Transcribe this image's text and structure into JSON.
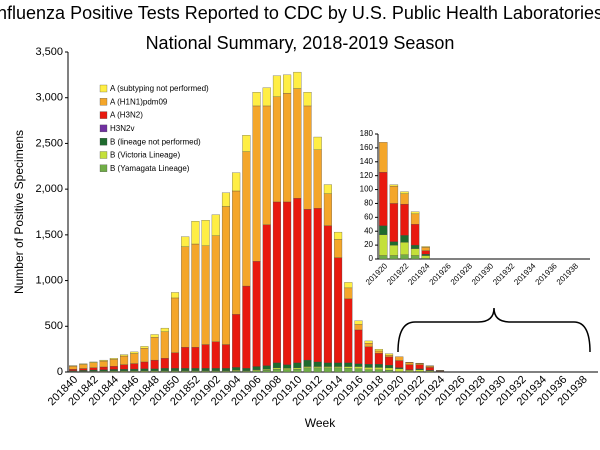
{
  "chart_data": [
    {
      "type": "bar",
      "stacked": true,
      "title": "Influenza Positive Tests Reported to CDC by U.S. Public Health Laboratories,",
      "subtitle": "National Summary, 2018-2019 Season",
      "x_label": "Week",
      "y_label": "Number of Positive Specimens",
      "categories": [
        "201840",
        null,
        "201842",
        null,
        "201844",
        null,
        "201846",
        null,
        "201848",
        null,
        "201850",
        null,
        "201852",
        null,
        "201902",
        null,
        "201904",
        null,
        "201906",
        null,
        "201908",
        null,
        "201910",
        null,
        "201912",
        null,
        "201914",
        null,
        "201916",
        null,
        "201918",
        null,
        "201920",
        null,
        "201922",
        null,
        "201924",
        null,
        "201926",
        null,
        "201928",
        null,
        "201930",
        null,
        "201932",
        null,
        "201934",
        null,
        "201936",
        null,
        "201938",
        null
      ],
      "ylim": [
        0,
        3500
      ],
      "yticks": [
        0,
        500,
        {
          "value": 1000,
          "label": "1,000"
        },
        {
          "value": 1500,
          "label": "1,500"
        },
        {
          "value": 2000,
          "label": "2,000"
        },
        {
          "value": 2500,
          "label": "2,500"
        },
        {
          "value": 3000,
          "label": "3,000"
        },
        {
          "value": 3500,
          "label": "3,500"
        }
      ],
      "series": [
        {
          "name": "B (Yamagata Lineage)",
          "color": "#70ad47",
          "values": [
            4,
            4,
            5,
            6,
            6,
            6,
            6,
            6,
            6,
            7,
            7,
            7,
            7,
            7,
            7,
            7,
            10,
            7,
            15,
            20,
            30,
            25,
            30,
            45,
            45,
            45,
            45,
            40,
            35,
            25,
            25,
            20,
            5,
            5,
            6,
            5,
            1,
            0,
            0,
            0,
            0,
            0,
            0,
            0,
            0,
            0,
            0,
            0,
            0,
            0,
            0,
            0
          ]
        },
        {
          "name": "B (Victoria Lineage)",
          "color": "#c4e03a",
          "values": [
            3,
            4,
            5,
            5,
            6,
            6,
            6,
            7,
            7,
            8,
            8,
            8,
            8,
            8,
            8,
            8,
            10,
            8,
            10,
            10,
            15,
            15,
            15,
            15,
            15,
            15,
            15,
            20,
            25,
            25,
            25,
            25,
            30,
            15,
            18,
            10,
            4,
            0,
            0,
            0,
            0,
            0,
            0,
            0,
            0,
            0,
            0,
            0,
            0,
            0,
            0,
            0
          ]
        },
        {
          "name": "B (lineage not performed)",
          "color": "#1f6b2e",
          "values": [
            8,
            10,
            12,
            14,
            16,
            18,
            20,
            22,
            22,
            25,
            25,
            25,
            25,
            25,
            25,
            25,
            30,
            25,
            35,
            40,
            55,
            40,
            55,
            70,
            50,
            40,
            40,
            40,
            30,
            35,
            35,
            30,
            13,
            5,
            10,
            5,
            2,
            0,
            0,
            0,
            0,
            0,
            0,
            0,
            0,
            0,
            0,
            0,
            0,
            0,
            0,
            0
          ]
        },
        {
          "name": "H3N2v",
          "color": "#7030a0",
          "values": [
            0,
            0,
            0,
            0,
            0,
            0,
            0,
            0,
            0,
            0,
            0,
            0,
            0,
            0,
            0,
            0,
            0,
            0,
            0,
            0,
            0,
            0,
            0,
            0,
            0,
            0,
            0,
            0,
            0,
            0,
            0,
            0,
            0,
            0,
            0,
            0,
            0,
            0,
            0,
            0,
            0,
            0,
            0,
            0,
            0,
            0,
            0,
            0,
            0,
            0,
            0,
            0
          ]
        },
        {
          "name": "A (H3N2)",
          "color": "#e8190f",
          "values": [
            15,
            20,
            25,
            30,
            35,
            50,
            60,
            75,
            95,
            110,
            170,
            230,
            230,
            260,
            290,
            260,
            580,
            900,
            1150,
            1540,
            1760,
            1780,
            1800,
            1650,
            1680,
            1500,
            1150,
            700,
            370,
            190,
            120,
            90,
            77,
            55,
            45,
            30,
            5,
            0,
            0,
            0,
            0,
            0,
            0,
            0,
            0,
            0,
            0,
            0,
            0,
            0,
            0,
            0
          ]
        },
        {
          "name": "A (H1N1)pdm09",
          "color": "#f4a62a",
          "values": [
            35,
            45,
            55,
            65,
            75,
            95,
            110,
            150,
            250,
            290,
            600,
            1100,
            1130,
            1080,
            1160,
            1510,
            1350,
            1470,
            1700,
            1300,
            1150,
            1190,
            1200,
            1130,
            640,
            350,
            200,
            120,
            60,
            40,
            25,
            20,
            43,
            25,
            15,
            15,
            5,
            0,
            0,
            0,
            0,
            0,
            0,
            0,
            0,
            0,
            0,
            0,
            0,
            0,
            0,
            0
          ]
        },
        {
          "name": "A (subtyping not performed)",
          "color": "#ffee44",
          "values": [
            5,
            7,
            8,
            10,
            12,
            15,
            18,
            20,
            30,
            40,
            60,
            110,
            250,
            280,
            230,
            150,
            200,
            180,
            150,
            200,
            230,
            200,
            180,
            150,
            140,
            100,
            80,
            60,
            40,
            25,
            20,
            15,
            0,
            2,
            3,
            3,
            1,
            0,
            0,
            0,
            0,
            0,
            0,
            0,
            0,
            0,
            0,
            0,
            0,
            0,
            0,
            0
          ]
        }
      ]
    },
    {
      "type": "bar",
      "stacked": true,
      "categories": [
        "201920",
        null,
        "201922",
        null,
        "201924",
        null,
        "201926",
        null,
        "201928",
        null,
        "201930",
        null,
        "201932",
        null,
        "201934",
        null,
        "201936",
        null,
        "201938",
        null
      ],
      "ylim": [
        0,
        180
      ],
      "yticks": [
        0,
        20,
        40,
        60,
        80,
        100,
        120,
        140,
        160,
        180
      ],
      "series": [
        {
          "color": "#70ad47",
          "values": [
            5,
            5,
            6,
            5,
            1,
            0,
            0,
            0,
            0,
            0,
            0,
            0,
            0,
            0,
            0,
            0,
            0,
            0,
            0,
            0
          ]
        },
        {
          "color": "#c4e03a",
          "values": [
            30,
            15,
            18,
            10,
            4,
            0,
            0,
            0,
            0,
            0,
            0,
            0,
            0,
            0,
            0,
            0,
            0,
            0,
            0,
            0
          ]
        },
        {
          "color": "#1f6b2e",
          "values": [
            13,
            5,
            10,
            5,
            2,
            0,
            0,
            0,
            0,
            0,
            0,
            0,
            0,
            0,
            0,
            0,
            0,
            0,
            0,
            0
          ]
        },
        {
          "color": "#7030a0",
          "values": [
            0,
            0,
            0,
            0,
            0,
            0,
            0,
            0,
            0,
            0,
            0,
            0,
            0,
            0,
            0,
            0,
            0,
            0,
            0,
            0
          ]
        },
        {
          "color": "#e8190f",
          "values": [
            77,
            55,
            45,
            30,
            5,
            0,
            0,
            0,
            0,
            0,
            0,
            0,
            0,
            0,
            0,
            0,
            0,
            0,
            0,
            0
          ]
        },
        {
          "color": "#f4a62a",
          "values": [
            43,
            25,
            15,
            15,
            5,
            0,
            0,
            0,
            0,
            0,
            0,
            0,
            0,
            0,
            0,
            0,
            0,
            0,
            0,
            0
          ]
        },
        {
          "color": "#ffee44",
          "values": [
            0,
            2,
            3,
            3,
            1,
            0,
            0,
            0,
            0,
            0,
            0,
            0,
            0,
            0,
            0,
            0,
            0,
            0,
            0,
            0
          ]
        }
      ]
    }
  ]
}
